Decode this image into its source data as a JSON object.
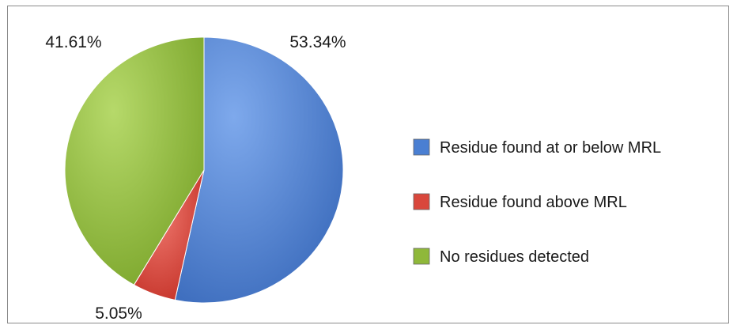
{
  "chart_data": {
    "type": "pie",
    "title": "",
    "slices": [
      {
        "label": "Residue found at or below MRL",
        "value": 53.34,
        "value_label": "53.34%",
        "color": "#4a7fd2"
      },
      {
        "label": "Residue found above MRL",
        "value": 5.05,
        "value_label": "5.05%",
        "color": "#d9473c"
      },
      {
        "label": "No residues detected",
        "value": 41.61,
        "value_label": "41.61%",
        "color": "#8fb83a"
      }
    ],
    "legend_position": "right"
  }
}
